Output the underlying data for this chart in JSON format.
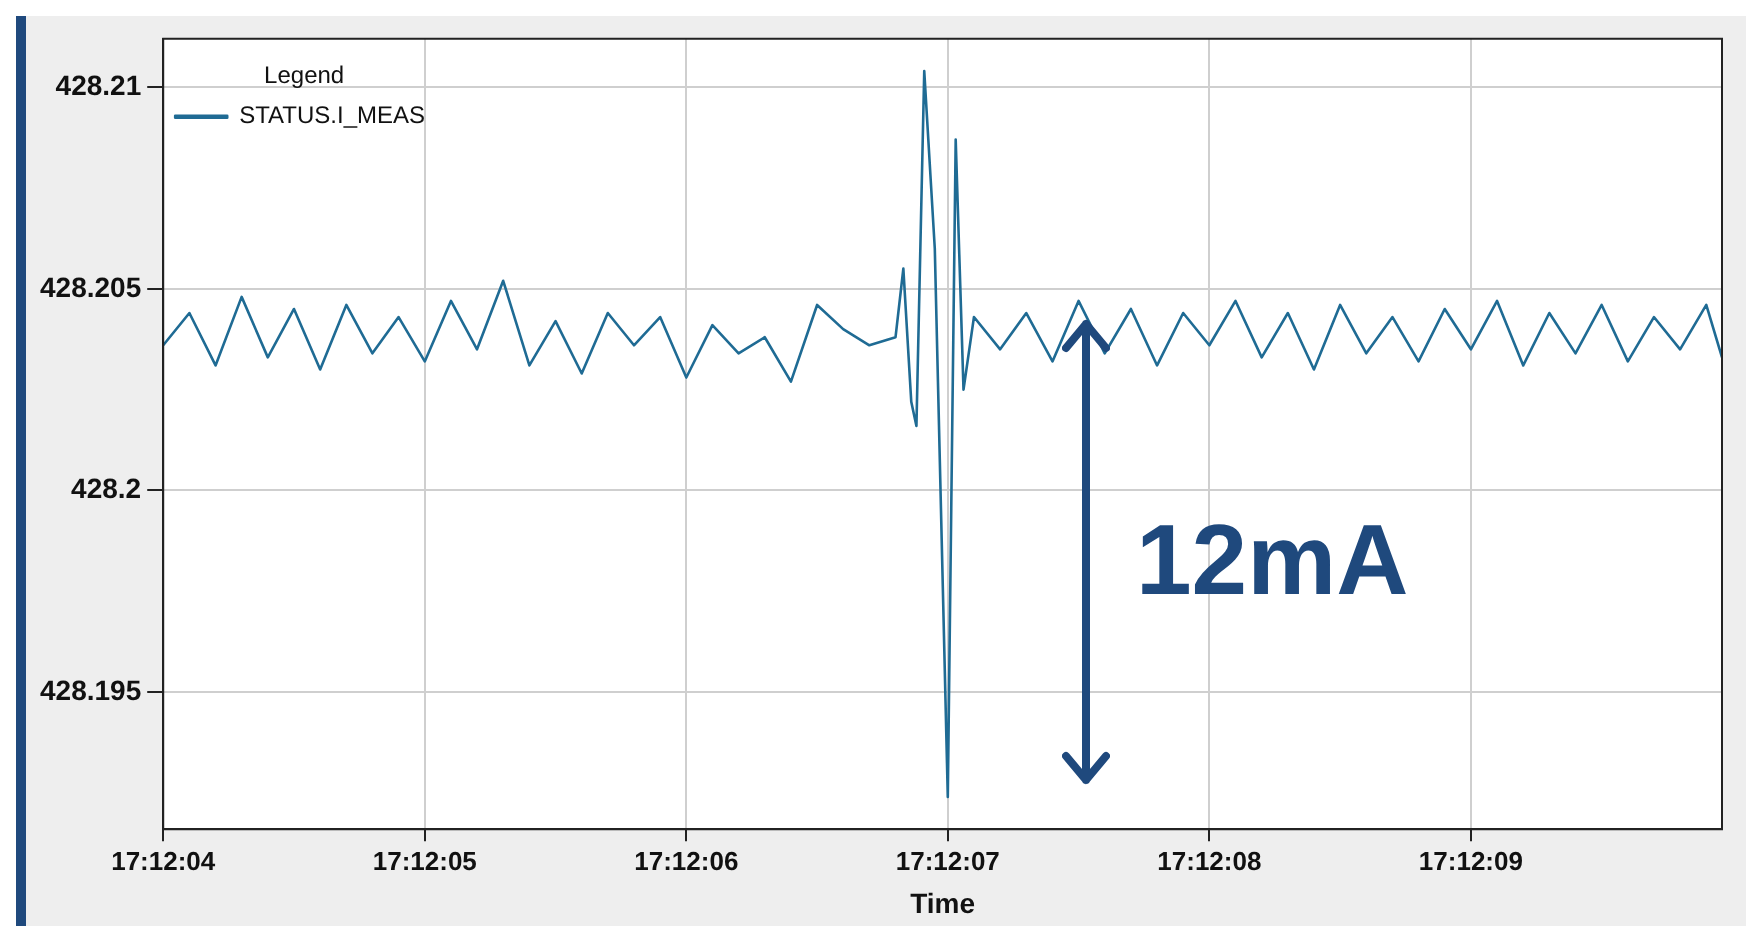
{
  "chart_data": {
    "type": "line",
    "xlabel": "Time",
    "legend_title": "Legend",
    "legend": "top left",
    "grid": true,
    "line_style": "solid",
    "xlim": [
      17.2011111,
      17.2027667
    ],
    "ylim": [
      428.1916,
      428.2112
    ],
    "xticks": [
      {
        "value": 17.2011111,
        "label": "17:12:04"
      },
      {
        "value": 17.2013889,
        "label": "17:12:05"
      },
      {
        "value": 17.2016667,
        "label": "17:12:06"
      },
      {
        "value": 17.2019444,
        "label": "17:12:07"
      },
      {
        "value": 17.2022222,
        "label": "17:12:08"
      },
      {
        "value": 17.2025,
        "label": "17:12:09"
      }
    ],
    "yticks": [
      428.195,
      428.2,
      428.205,
      428.21
    ],
    "annotations": [
      "12mA"
    ],
    "series": [
      {
        "name": "STATUS.I_MEAS",
        "color": "#1f6b94",
        "x": [
          17.2011111,
          17.2011389,
          17.2011667,
          17.2011944,
          17.2012222,
          17.20125,
          17.2012778,
          17.2013056,
          17.2013333,
          17.2013611,
          17.2013889,
          17.2014167,
          17.2014444,
          17.2014722,
          17.2015,
          17.2015278,
          17.2015556,
          17.2015833,
          17.2016111,
          17.2016389,
          17.2016667,
          17.2016944,
          17.2017222,
          17.20175,
          17.2017778,
          17.2018056,
          17.2018333,
          17.2018611,
          17.2018889,
          17.2018972,
          17.2019056,
          17.2019111,
          17.2019194,
          17.2019306,
          17.2019444,
          17.2019528,
          17.2019611,
          17.2019722,
          17.202,
          17.2020278,
          17.2020556,
          17.2020833,
          17.2021111,
          17.2021389,
          17.2021667,
          17.2021944,
          17.2022222,
          17.20225,
          17.2022778,
          17.2023056,
          17.2023333,
          17.2023611,
          17.2023889,
          17.2024167,
          17.2024444,
          17.2024722,
          17.2025,
          17.2025278,
          17.2025556,
          17.2025833,
          17.2026111,
          17.2026389,
          17.2026667,
          17.2026944,
          17.2027222,
          17.20275,
          17.2027667
        ],
        "values": [
          428.2036,
          428.2044,
          428.2031,
          428.2048,
          428.2033,
          428.2045,
          428.203,
          428.2046,
          428.2034,
          428.2043,
          428.2032,
          428.2047,
          428.2035,
          428.2052,
          428.2031,
          428.2042,
          428.2029,
          428.2044,
          428.2036,
          428.2043,
          428.2028,
          428.2041,
          428.2034,
          428.2038,
          428.2027,
          428.2046,
          428.204,
          428.2036,
          428.2038,
          428.2055,
          428.2022,
          428.2016,
          428.2104,
          428.206,
          428.1924,
          428.2087,
          428.2025,
          428.2043,
          428.2035,
          428.2044,
          428.2032,
          428.2047,
          428.2034,
          428.2045,
          428.2031,
          428.2044,
          428.2036,
          428.2047,
          428.2033,
          428.2044,
          428.203,
          428.2046,
          428.2034,
          428.2043,
          428.2032,
          428.2045,
          428.2035,
          428.2047,
          428.2031,
          428.2044,
          428.2034,
          428.2046,
          428.2032,
          428.2043,
          428.2035,
          428.2046,
          428.2033
        ]
      }
    ]
  }
}
